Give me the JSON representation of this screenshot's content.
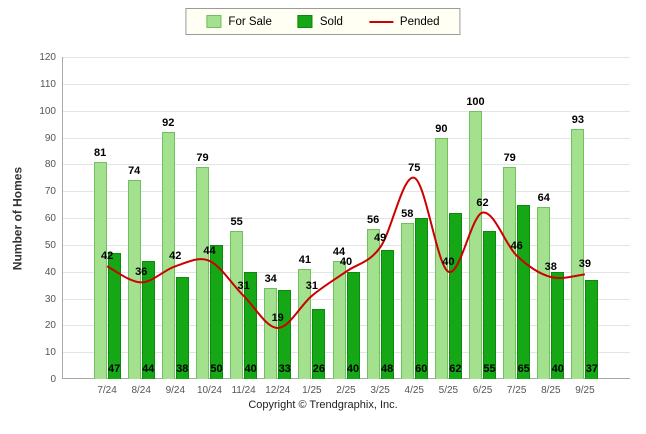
{
  "chart_data": {
    "type": "bar",
    "categories": [
      "7/24",
      "8/24",
      "9/24",
      "10/24",
      "11/24",
      "12/24",
      "1/25",
      "2/25",
      "3/25",
      "4/25",
      "5/25",
      "6/25",
      "7/25",
      "8/25",
      "9/25"
    ],
    "series": [
      {
        "name": "For Sale",
        "type": "bar",
        "color": "#a3e18f",
        "border": "#6fc05e",
        "values": [
          81,
          74,
          92,
          79,
          55,
          34,
          41,
          44,
          56,
          58,
          90,
          100,
          79,
          64,
          93
        ]
      },
      {
        "name": "Sold",
        "type": "bar",
        "color": "#15a715",
        "border": "#0c8a0c",
        "values": [
          47,
          44,
          38,
          50,
          40,
          33,
          26,
          40,
          48,
          60,
          62,
          55,
          65,
          40,
          37
        ]
      },
      {
        "name": "Pended",
        "type": "line",
        "color": "#cc0000",
        "values": [
          42,
          36,
          42,
          44,
          31,
          19,
          31,
          40,
          49,
          75,
          40,
          62,
          46,
          38,
          39
        ]
      }
    ],
    "title": "",
    "xlabel": "",
    "ylabel": "Number of Homes",
    "ylim": [
      0,
      120
    ],
    "ytick_step": 10,
    "grid": true,
    "legend_position": "top"
  },
  "footer": {
    "copyright": "Copyright © Trendgraphix, Inc."
  }
}
